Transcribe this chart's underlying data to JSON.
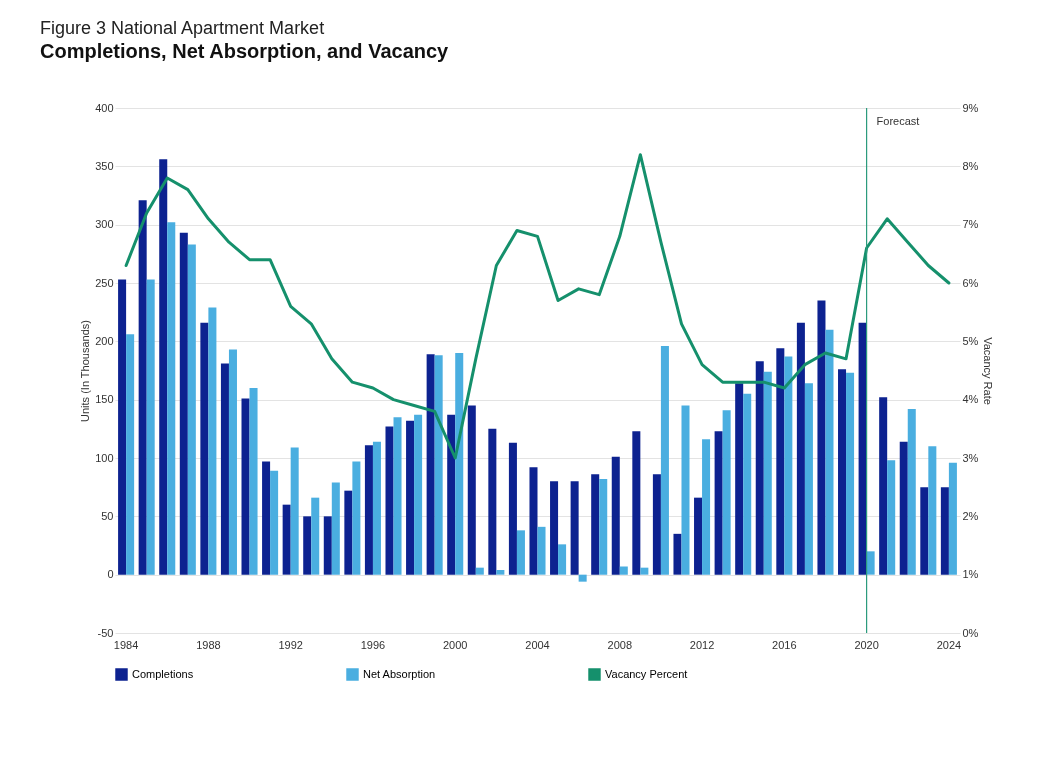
{
  "chart_data": {
    "type": "bar",
    "title": "Figure 3 National Apartment Market",
    "subtitle": "Completions, Net Absorption, and Vacancy",
    "ylabel": "Units (In Thousands)",
    "y2label": "Vacancy Rate",
    "categories": [
      "1984",
      null,
      null,
      null,
      "1988",
      null,
      null,
      null,
      "1992",
      null,
      null,
      null,
      "1996",
      null,
      null,
      null,
      "2000",
      null,
      null,
      null,
      "2004",
      null,
      null,
      null,
      "2008",
      null,
      null,
      null,
      "2012",
      null,
      null,
      null,
      "2016",
      null,
      null,
      null,
      "2020",
      null,
      null,
      null,
      "2024"
    ],
    "series": [
      {
        "name": "Completions",
        "color": "#0d2290",
        "values": [
          253,
          321,
          356,
          293,
          216,
          181,
          151,
          97,
          60,
          50,
          50,
          72,
          111,
          127,
          132,
          189,
          137,
          145,
          125,
          113,
          92,
          80,
          80,
          86,
          101,
          123,
          86,
          35,
          66,
          123,
          164,
          183,
          194,
          216,
          235,
          176,
          216,
          152,
          114,
          75,
          75
        ]
      },
      {
        "name": "Net Absorption",
        "color": "#4aaee0",
        "values": [
          206,
          253,
          302,
          283,
          229,
          193,
          160,
          89,
          109,
          66,
          79,
          97,
          114,
          135,
          137,
          188,
          190,
          6,
          4,
          38,
          41,
          26,
          -6,
          82,
          7,
          6,
          196,
          145,
          116,
          141,
          155,
          174,
          187,
          164,
          210,
          173,
          20,
          98,
          142,
          110,
          96
        ]
      },
      {
        "name": "Vacancy Percent",
        "type": "line",
        "axis": "y2",
        "color": "#15906c",
        "values": [
          6.3,
          7.2,
          7.8,
          7.6,
          7.1,
          6.7,
          6.4,
          6.4,
          5.6,
          5.3,
          4.7,
          4.3,
          4.2,
          4.0,
          3.9,
          3.8,
          3.0,
          4.7,
          6.3,
          6.9,
          6.8,
          5.7,
          5.9,
          5.8,
          6.8,
          8.2,
          6.7,
          5.3,
          4.6,
          4.3,
          4.3,
          4.3,
          4.2,
          4.6,
          4.8,
          4.7,
          6.6,
          7.1,
          6.7,
          6.3,
          6.0
        ]
      }
    ],
    "ylim": [
      -50,
      400
    ],
    "yticks": [
      -50,
      0,
      50,
      100,
      150,
      200,
      250,
      300,
      350,
      400
    ],
    "y2lim": [
      0,
      9
    ],
    "y2ticks": [
      {
        "value": 0,
        "label": "0%"
      },
      {
        "value": 1,
        "label": "1%"
      },
      {
        "value": 2,
        "label": "2%"
      },
      {
        "value": 3,
        "label": "3%"
      },
      {
        "value": 4,
        "label": "4%"
      },
      {
        "value": 5,
        "label": "5%"
      },
      {
        "value": 6,
        "label": "6%"
      },
      {
        "value": 7,
        "label": "7%"
      },
      {
        "value": 8,
        "label": "8%"
      },
      {
        "value": 9,
        "label": "9%"
      }
    ],
    "ref_lines": [
      {
        "axis": "x",
        "value": "2020",
        "label": "Forecast",
        "color": "#2a9a7c"
      }
    ],
    "grid": "y",
    "legend": "bottom"
  }
}
